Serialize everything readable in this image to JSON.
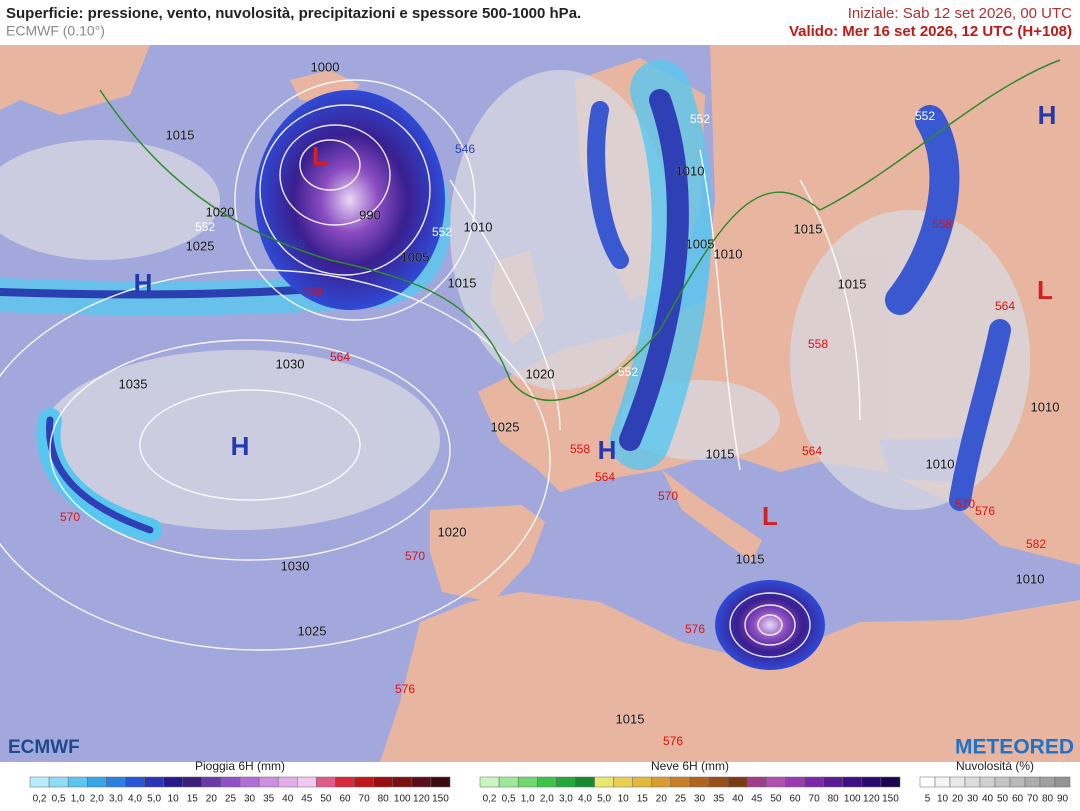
{
  "header": {
    "title": "Superficie: pressione, vento, nuvolosità, precipitazioni e spessore 500-1000 hPa.",
    "model": "ECMWF (0.10°)",
    "init": "Iniziale: Sab 12 set 2026, 00 UTC",
    "valid": "Valido: Mer 16 set 2026, 12 UTC (H+108)"
  },
  "logos": [
    "ECMWF",
    "METEORED"
  ],
  "isobar_labels": [
    "1000",
    "1015",
    "1020",
    "1025",
    "990",
    "1005",
    "1010",
    "1015",
    "1030",
    "1035",
    "1020",
    "1025",
    "1010",
    "1005",
    "1010",
    "1015",
    "1015",
    "1015",
    "1010",
    "1020",
    "1030",
    "1025",
    "1015",
    "1015",
    "1010",
    "1010"
  ],
  "thickness_labels_red": [
    "558",
    "564",
    "570",
    "570",
    "558",
    "564",
    "570",
    "558",
    "564",
    "564",
    "570",
    "576",
    "582",
    "576",
    "576",
    "576",
    "558"
  ],
  "thickness_labels_blue": [
    "546",
    "546"
  ],
  "thickness_labels_white": [
    "552",
    "552",
    "552",
    "552",
    "552"
  ],
  "pressure_centers": [
    {
      "label": "L",
      "color": "#d42020"
    },
    {
      "label": "H",
      "color": "#2438b0"
    },
    {
      "label": "H",
      "color": "#2438b0"
    },
    {
      "label": "H",
      "color": "#2438b0"
    },
    {
      "label": "L",
      "color": "#d42020"
    },
    {
      "label": "H",
      "color": "#2438b0"
    },
    {
      "label": "L",
      "color": "#d42020"
    }
  ],
  "legends": [
    {
      "title": "Pioggia 6H (mm)",
      "ticks": [
        "0,2",
        "0,5",
        "1,0",
        "2,0",
        "3,0",
        "4,0",
        "5,0",
        "10",
        "15",
        "20",
        "25",
        "30",
        "35",
        "40",
        "45",
        "50",
        "60",
        "70",
        "80",
        "100",
        "120",
        "150"
      ],
      "colors": [
        "#b8ecfb",
        "#8fdcf5",
        "#5cc6ee",
        "#35a6e6",
        "#2b7fe0",
        "#2a55d6",
        "#2a35b8",
        "#261a8c",
        "#3b1f7a",
        "#6a3aa8",
        "#8e52c6",
        "#b06fd8",
        "#cc8fe0",
        "#e1aee8",
        "#f1c8f0",
        "#e05a8a",
        "#d8283a",
        "#c01818",
        "#9a1010",
        "#7a1010",
        "#5a0e1c",
        "#3a0a10"
      ]
    },
    {
      "title": "Neve 6H (mm)",
      "ticks": [
        "0,2",
        "0,5",
        "1,0",
        "2,0",
        "3,0",
        "4,0",
        "5,0",
        "10",
        "15",
        "20",
        "25",
        "30",
        "35",
        "40",
        "45",
        "50",
        "60",
        "70",
        "80",
        "100",
        "120",
        "150"
      ],
      "colors": [
        "#c8f5c0",
        "#9ee89a",
        "#6fd86e",
        "#3fc44a",
        "#24a83a",
        "#1a8a30",
        "#e8e870",
        "#e8d050",
        "#e0b840",
        "#d89c30",
        "#c88028",
        "#b06420",
        "#965018",
        "#7a3c14",
        "#a03c8a",
        "#b050b0",
        "#9a3ab0",
        "#7a28a8",
        "#5a1a98",
        "#3e1088",
        "#2a0a70",
        "#1a0650"
      ]
    },
    {
      "title": "Nuvolosità (%)",
      "ticks": [
        "5",
        "10",
        "20",
        "30",
        "40",
        "50",
        "60",
        "70",
        "80",
        "90"
      ],
      "colors": [
        "#ffffff",
        "#f4f4f4",
        "#e8e8e8",
        "#dcdcdc",
        "#d0d0d0",
        "#c4c4c4",
        "#b8b8b8",
        "#acacac",
        "#a0a0a0",
        "#949494"
      ]
    }
  ]
}
